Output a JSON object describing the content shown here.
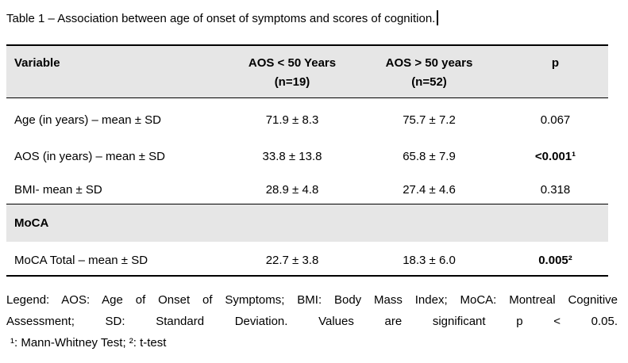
{
  "title": "Table 1 – Association between age of onset of symptoms and scores of cognition.",
  "table": {
    "columns": {
      "variable": "Variable",
      "group1_line1": "AOS < 50 Years",
      "group1_line2": "(n=19)",
      "group2_line1": "AOS > 50 years",
      "group2_line2": "(n=52)",
      "p": "p"
    },
    "rows": [
      {
        "variable": "Age (in years) – mean ± SD",
        "group1": "71.9 ± 8.3",
        "group2": "75.7 ± 7.2",
        "p": "0.067"
      },
      {
        "variable": "AOS (in years) – mean ± SD",
        "group1": "33.8 ± 13.8",
        "group2": "65.8 ± 7.9",
        "p": "<0.001¹"
      },
      {
        "variable": "BMI- mean ± SD",
        "group1": "28.9 ± 4.8",
        "group2": "27.4 ± 4.6",
        "p": "0.318"
      }
    ],
    "section_header": "MoCA",
    "section_rows": [
      {
        "variable": "MoCA Total – mean ± SD",
        "group1": "22.7 ± 3.8",
        "group2": "18.3 ± 6.0",
        "p": "0.005²"
      }
    ]
  },
  "legend": {
    "line1": "Legend: AOS: Age of Onset of Symptoms; BMI: Body Mass Index; MoCA: Montreal Cognitive",
    "line2": "Assessment; SD: Standard Deviation. Values are significant p < 0.05.",
    "line3": "¹: Mann-Whitney Test; ²: t-test"
  },
  "colors": {
    "header_bg": "#e6e6e6",
    "border": "#000000",
    "text": "#000000"
  }
}
